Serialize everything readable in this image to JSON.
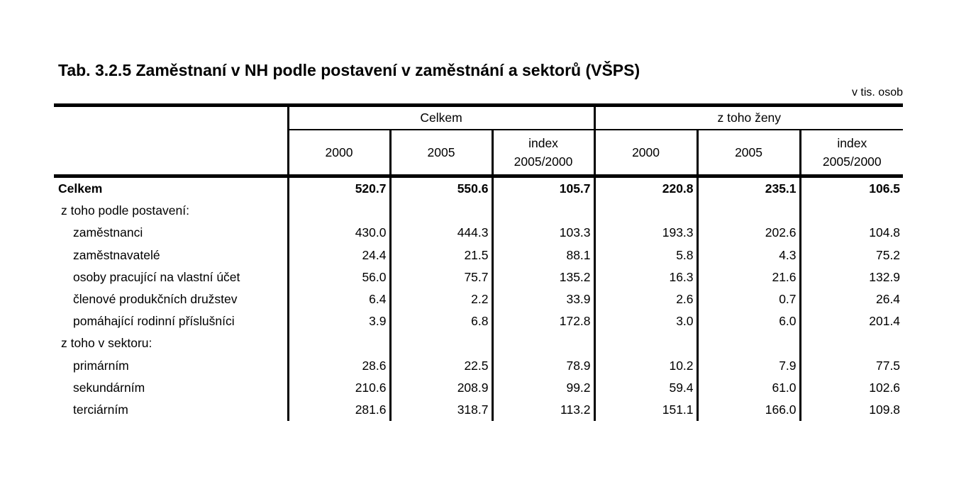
{
  "title": "Tab. 3.2.5 Zaměstnaní v NH podle postavení v zaměstnání a sektorů (VŠPS)",
  "unit": "v tis. osob",
  "header": {
    "groups": [
      "Celkem",
      "z toho ženy"
    ],
    "columns": [
      {
        "line1": "2000",
        "line2": ""
      },
      {
        "line1": "2005",
        "line2": ""
      },
      {
        "line1": "index",
        "line2": "2005/2000"
      },
      {
        "line1": "2000",
        "line2": ""
      },
      {
        "line1": "2005",
        "line2": ""
      },
      {
        "line1": "index",
        "line2": "2005/2000"
      }
    ]
  },
  "rows": [
    {
      "label": "Celkem",
      "values": [
        "520.7",
        "550.6",
        "105.7",
        "220.8",
        "235.1",
        "106.5"
      ]
    },
    {
      "label": "z toho podle postavení:",
      "values": [
        "",
        "",
        "",
        "",
        "",
        ""
      ]
    },
    {
      "label": "zaměstnanci",
      "values": [
        "430.0",
        "444.3",
        "103.3",
        "193.3",
        "202.6",
        "104.8"
      ]
    },
    {
      "label": "zaměstnavatelé",
      "values": [
        "24.4",
        "21.5",
        "88.1",
        "5.8",
        "4.3",
        "75.2"
      ]
    },
    {
      "label": "osoby pracující na vlastní účet",
      "values": [
        "56.0",
        "75.7",
        "135.2",
        "16.3",
        "21.6",
        "132.9"
      ]
    },
    {
      "label": "členové produkčních družstev",
      "values": [
        "6.4",
        "2.2",
        "33.9",
        "2.6",
        "0.7",
        "26.4"
      ]
    },
    {
      "label": "pomáhající rodinní příslušníci",
      "values": [
        "3.9",
        "6.8",
        "172.8",
        "3.0",
        "6.0",
        "201.4"
      ]
    },
    {
      "label": "z toho v sektoru:",
      "values": [
        "",
        "",
        "",
        "",
        "",
        ""
      ]
    },
    {
      "label": "primárním",
      "values": [
        "28.6",
        "22.5",
        "78.9",
        "10.2",
        "7.9",
        "77.5"
      ]
    },
    {
      "label": "sekundárním",
      "values": [
        "210.6",
        "208.9",
        "99.2",
        "59.4",
        "61.0",
        "102.6"
      ]
    },
    {
      "label": "terciárním",
      "values": [
        "281.6",
        "318.7",
        "113.2",
        "151.1",
        "166.0",
        "109.8"
      ]
    }
  ]
}
